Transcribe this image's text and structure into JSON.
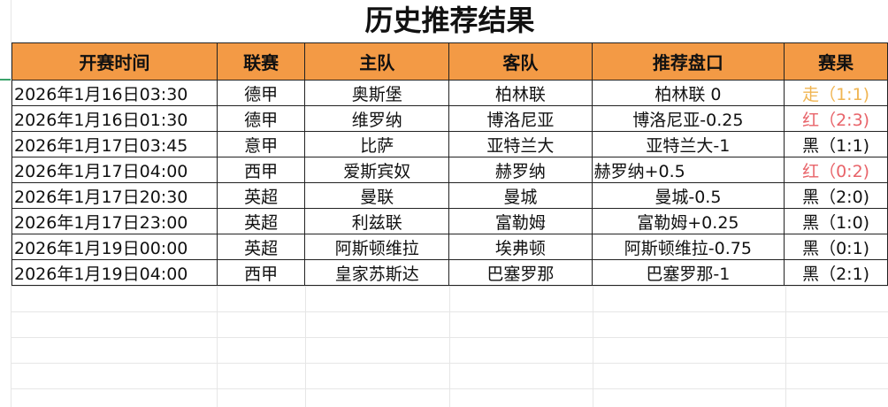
{
  "title": "历史推荐结果",
  "headers": [
    "开赛时间",
    "联赛",
    "主队",
    "客队",
    "推荐盘口",
    "赛果"
  ],
  "rows": [
    {
      "time": "2026年1月16日03:30",
      "league": "德甲",
      "home": "奥斯堡",
      "away": "柏林联",
      "pick": "柏林联 0",
      "result": "走（1:1)",
      "result_color": "#f0b552"
    },
    {
      "time": "2026年1月16日01:30",
      "league": "德甲",
      "home": "维罗纳",
      "away": "博洛尼亚",
      "pick": "博洛尼亚-0.25",
      "result": "红（2:3)",
      "result_color": "#e8646a"
    },
    {
      "time": "2026年1月17日03:45",
      "league": "意甲",
      "home": "比萨",
      "away": "亚特兰大",
      "pick": "亚特兰大-1",
      "result": "黑（1:1)",
      "result_color": "#111111"
    },
    {
      "time": "2026年1月17日04:00",
      "league": "西甲",
      "home": "爱斯宾奴",
      "away": "赫罗纳",
      "pick": "赫罗纳+0.5",
      "result": "红（0:2)",
      "result_color": "#e8646a"
    },
    {
      "time": "2026年1月17日20:30",
      "league": "英超",
      "home": "曼联",
      "away": "曼城",
      "pick": "曼城-0.5",
      "result": "黑（2:0)",
      "result_color": "#111111"
    },
    {
      "time": "2026年1月17日23:00",
      "league": "英超",
      "home": "利兹联",
      "away": "富勒姆",
      "pick": "富勒姆+0.25",
      "result": "黑（1:0)",
      "result_color": "#111111"
    },
    {
      "time": "2026年1月19日00:00",
      "league": "英超",
      "home": "阿斯顿维拉",
      "away": "埃弗顿",
      "pick": "阿斯顿维拉-0.75",
      "result": "黑（0:1)",
      "result_color": "#111111"
    },
    {
      "time": "2026年1月19日04:00",
      "league": "西甲",
      "home": "皇家苏斯达",
      "away": "巴塞罗那",
      "pick": "巴塞罗那-1",
      "result": "黑（2:1)",
      "result_color": "#111111"
    }
  ]
}
